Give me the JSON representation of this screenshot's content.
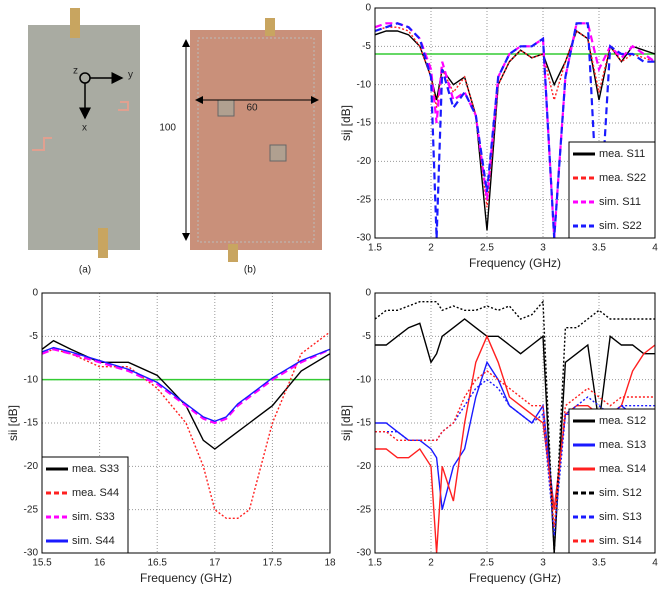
{
  "photos": {
    "a": {
      "caption": "(a)",
      "axes": [
        "z",
        "y",
        "x"
      ]
    },
    "b": {
      "caption": "(b)",
      "width": 60,
      "height": 100
    }
  },
  "chart_data": [
    {
      "type": "line",
      "xlabel": "Frequency (GHz)",
      "ylabel": "sij [dB]",
      "x": [
        1.5,
        1.6,
        1.7,
        1.8,
        1.9,
        2.0,
        2.05,
        2.1,
        2.2,
        2.3,
        2.4,
        2.5,
        2.6,
        2.7,
        2.8,
        2.9,
        3.0,
        3.1,
        3.2,
        3.3,
        3.4,
        3.5,
        3.6,
        3.7,
        3.8,
        3.9,
        4.0
      ],
      "xlim": [
        1.5,
        4
      ],
      "xticks": [
        1.5,
        2,
        2.5,
        3,
        3.5,
        4
      ],
      "ylim": [
        -30,
        0
      ],
      "yticks": [
        -30,
        -25,
        -20,
        -15,
        -10,
        -5,
        0
      ],
      "grid": true,
      "threshold": {
        "value": -6,
        "color": "#33cc33"
      },
      "legend_loc": "lower right",
      "series": [
        {
          "name": "mea. S11",
          "color": "#000000",
          "linestyle": "solid",
          "values": [
            -3.5,
            -3,
            -3,
            -3.5,
            -5,
            -9,
            -12,
            -8,
            -10,
            -9,
            -14,
            -29,
            -10,
            -7,
            -5.5,
            -6.5,
            -6,
            -10,
            -7,
            -3,
            -4,
            -12,
            -5,
            -7,
            -5,
            -5.5,
            -6
          ]
        },
        {
          "name": "mea. S22",
          "color": "#ff2020",
          "linestyle": "dotted",
          "values": [
            -3,
            -2.5,
            -2.5,
            -3,
            -5,
            -9,
            -13,
            -8,
            -11,
            -9,
            -14,
            -26,
            -10,
            -7,
            -5.5,
            -6.5,
            -6,
            -12,
            -7,
            -3,
            -4,
            -11,
            -5,
            -7,
            -6,
            -6.5,
            -7
          ]
        },
        {
          "name": "sim. S11",
          "color": "#ff00ff",
          "linestyle": "dashed",
          "values": [
            -2.5,
            -2,
            -2,
            -2.5,
            -4,
            -8,
            -15,
            -7,
            -12,
            -11,
            -14,
            -25,
            -9,
            -6,
            -5,
            -5,
            -4,
            -30,
            -9,
            -2,
            -2,
            -8,
            -5,
            -6.5,
            -5,
            -6,
            -7
          ]
        },
        {
          "name": "sim. S22",
          "color": "#1a1aff",
          "linestyle": "dashed",
          "values": [
            -3,
            -2.5,
            -2,
            -2.5,
            -4,
            -9,
            -30,
            -8,
            -13,
            -11,
            -14,
            -24,
            -9,
            -6,
            -5,
            -5,
            -4,
            -30,
            -9,
            -2,
            -2,
            -30,
            -5,
            -6,
            -6,
            -7,
            -7
          ]
        }
      ]
    },
    {
      "type": "line",
      "xlabel": "Frequency (GHz)",
      "ylabel": "sii [dB]",
      "x": [
        15.5,
        15.6,
        15.75,
        16,
        16.25,
        16.5,
        16.75,
        16.9,
        17,
        17.1,
        17.2,
        17.3,
        17.5,
        17.75,
        18
      ],
      "xlim": [
        15.5,
        18
      ],
      "xticks": [
        15.5,
        16,
        16.5,
        17,
        17.5,
        18
      ],
      "ylim": [
        -30,
        0
      ],
      "yticks": [
        -30,
        -25,
        -20,
        -15,
        -10,
        -5,
        0
      ],
      "grid": true,
      "threshold": {
        "value": -10,
        "color": "#33cc33"
      },
      "legend_loc": "lower left",
      "series": [
        {
          "name": "mea. S33",
          "color": "#000000",
          "linestyle": "solid",
          "values": [
            -6.5,
            -5.5,
            -6.5,
            -8,
            -8,
            -9.5,
            -13,
            -17,
            -18,
            -17,
            -16,
            -15,
            -13,
            -9,
            -7
          ]
        },
        {
          "name": "mea. S44",
          "color": "#ff2020",
          "linestyle": "dotted",
          "values": [
            -7,
            -6.5,
            -7,
            -8.5,
            -8.5,
            -11,
            -15,
            -20,
            -25,
            -26,
            -26,
            -25,
            -15,
            -7,
            -4.5
          ]
        },
        {
          "name": "sim. S33",
          "color": "#ff00ff",
          "linestyle": "dashed",
          "values": [
            -7,
            -6.5,
            -7,
            -8,
            -9,
            -10.5,
            -13,
            -14.5,
            -15,
            -14.5,
            -13,
            -12,
            -10,
            -8,
            -6.5
          ]
        },
        {
          "name": "sim. S44",
          "color": "#1a1aff",
          "linestyle": "solid",
          "values": [
            -6.8,
            -6.3,
            -6.8,
            -7.8,
            -8.8,
            -10.3,
            -12.8,
            -14.3,
            -14.8,
            -14.3,
            -12.8,
            -11.8,
            -9.8,
            -7.8,
            -6.5
          ]
        }
      ]
    },
    {
      "type": "line",
      "xlabel": "Frequency (GHz)",
      "ylabel": "sij [dB]",
      "x": [
        1.5,
        1.6,
        1.7,
        1.8,
        1.9,
        2.0,
        2.05,
        2.1,
        2.2,
        2.3,
        2.4,
        2.5,
        2.6,
        2.7,
        2.8,
        2.9,
        3.0,
        3.1,
        3.2,
        3.3,
        3.4,
        3.5,
        3.6,
        3.7,
        3.8,
        3.9,
        4.0
      ],
      "xlim": [
        1.5,
        4
      ],
      "xticks": [
        1.5,
        2,
        2.5,
        3,
        3.5,
        4
      ],
      "ylim": [
        -30,
        0
      ],
      "yticks": [
        -30,
        -25,
        -20,
        -15,
        -10,
        -5,
        0
      ],
      "grid": true,
      "legend_loc": "lower right",
      "series": [
        {
          "name": "mea. S12",
          "color": "#000000",
          "linestyle": "solid",
          "values": [
            -6,
            -6,
            -5,
            -4,
            -3.5,
            -8,
            -7,
            -5,
            -4,
            -3,
            -4,
            -5,
            -5,
            -6,
            -7,
            -6,
            -5,
            -30,
            -8,
            -7,
            -6,
            -15,
            -5,
            -6,
            -6,
            -7,
            -7
          ]
        },
        {
          "name": "mea. S13",
          "color": "#1a1aff",
          "linestyle": "solid",
          "values": [
            -15,
            -15,
            -16,
            -17,
            -17,
            -18,
            -19,
            -25,
            -20,
            -18,
            -12,
            -8,
            -10,
            -13,
            -14,
            -15,
            -13,
            -25,
            -14,
            -14,
            -14,
            -16,
            -14,
            -13,
            -14,
            -15,
            -15
          ]
        },
        {
          "name": "mea. S14",
          "color": "#ff2020",
          "linestyle": "solid",
          "values": [
            -18,
            -18,
            -19,
            -19,
            -18,
            -20,
            -30,
            -20,
            -24,
            -15,
            -8,
            -5,
            -8,
            -12,
            -13,
            -14,
            -15,
            -25,
            -14,
            -13,
            -13,
            -14,
            -14,
            -13,
            -9,
            -7,
            -6
          ]
        },
        {
          "name": "sim. S12",
          "color": "#000000",
          "linestyle": "dotted",
          "values": [
            -3,
            -2,
            -2,
            -1.5,
            -1,
            -1,
            -1,
            -2,
            -1.5,
            -2,
            -2,
            -1.5,
            -2,
            -1.5,
            -3,
            -2.5,
            -1,
            -30,
            -4,
            -4,
            -3,
            -2,
            -3,
            -3,
            -3,
            -3,
            -3
          ]
        },
        {
          "name": "sim. S13",
          "color": "#1a1aff",
          "linestyle": "dotted",
          "values": [
            -16,
            -16,
            -16,
            -17,
            -17,
            -17,
            -17,
            -16,
            -15,
            -13,
            -11,
            -10,
            -11,
            -13,
            -14,
            -15,
            -14,
            -28,
            -14,
            -13,
            -12,
            -13,
            -14,
            -13,
            -13,
            -13,
            -13
          ]
        },
        {
          "name": "sim. S14",
          "color": "#ff2020",
          "linestyle": "dotted",
          "values": [
            -16,
            -16,
            -17,
            -17,
            -17,
            -17,
            -17,
            -16,
            -15,
            -12,
            -10,
            -9,
            -10,
            -11,
            -12,
            -13,
            -13,
            -27,
            -13,
            -12,
            -11,
            -12,
            -13,
            -12,
            -12,
            -12,
            -12
          ]
        }
      ]
    }
  ]
}
